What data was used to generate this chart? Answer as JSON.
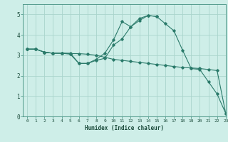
{
  "title": "",
  "xlabel": "Humidex (Indice chaleur)",
  "xlim": [
    -0.5,
    23
  ],
  "ylim": [
    0,
    5.5
  ],
  "xticks": [
    0,
    1,
    2,
    3,
    4,
    5,
    6,
    7,
    8,
    9,
    10,
    11,
    12,
    13,
    14,
    15,
    16,
    17,
    18,
    19,
    20,
    21,
    22,
    23
  ],
  "yticks": [
    0,
    1,
    2,
    3,
    4,
    5
  ],
  "bg_color": "#ceeee8",
  "grid_color": "#aad4cc",
  "line_color": "#2a7a6a",
  "line1_x": [
    0,
    1,
    2,
    3,
    4,
    5,
    6,
    7,
    8,
    9,
    10,
    11,
    12,
    13,
    14,
    15,
    16,
    17,
    18,
    19,
    20,
    21,
    22,
    23
  ],
  "line1_y": [
    3.3,
    3.3,
    3.15,
    3.1,
    3.1,
    3.1,
    2.6,
    2.6,
    2.8,
    3.1,
    3.75,
    4.65,
    4.4,
    4.8,
    4.95,
    4.9,
    4.55,
    4.2,
    3.25,
    2.35,
    2.3,
    1.7,
    1.1,
    0.15
  ],
  "line2_x": [
    0,
    1,
    2,
    3,
    4,
    5,
    6,
    7,
    8,
    9,
    10,
    11,
    12,
    13,
    14,
    15,
    16,
    17,
    18,
    19,
    20,
    21,
    22,
    23
  ],
  "line2_y": [
    3.3,
    3.3,
    3.15,
    3.1,
    3.1,
    3.08,
    3.08,
    3.05,
    3.0,
    2.9,
    2.8,
    2.75,
    2.7,
    2.65,
    2.6,
    2.55,
    2.5,
    2.45,
    2.4,
    2.38,
    2.35,
    2.3,
    2.25,
    0.15
  ],
  "line3_x": [
    0,
    1,
    2,
    3,
    4,
    5,
    6,
    7,
    8,
    9,
    10,
    11,
    12,
    13,
    14,
    15
  ],
  "line3_y": [
    3.3,
    3.3,
    3.15,
    3.1,
    3.1,
    3.05,
    2.6,
    2.6,
    2.75,
    2.85,
    3.5,
    3.8,
    4.4,
    4.7,
    4.95,
    4.9
  ]
}
